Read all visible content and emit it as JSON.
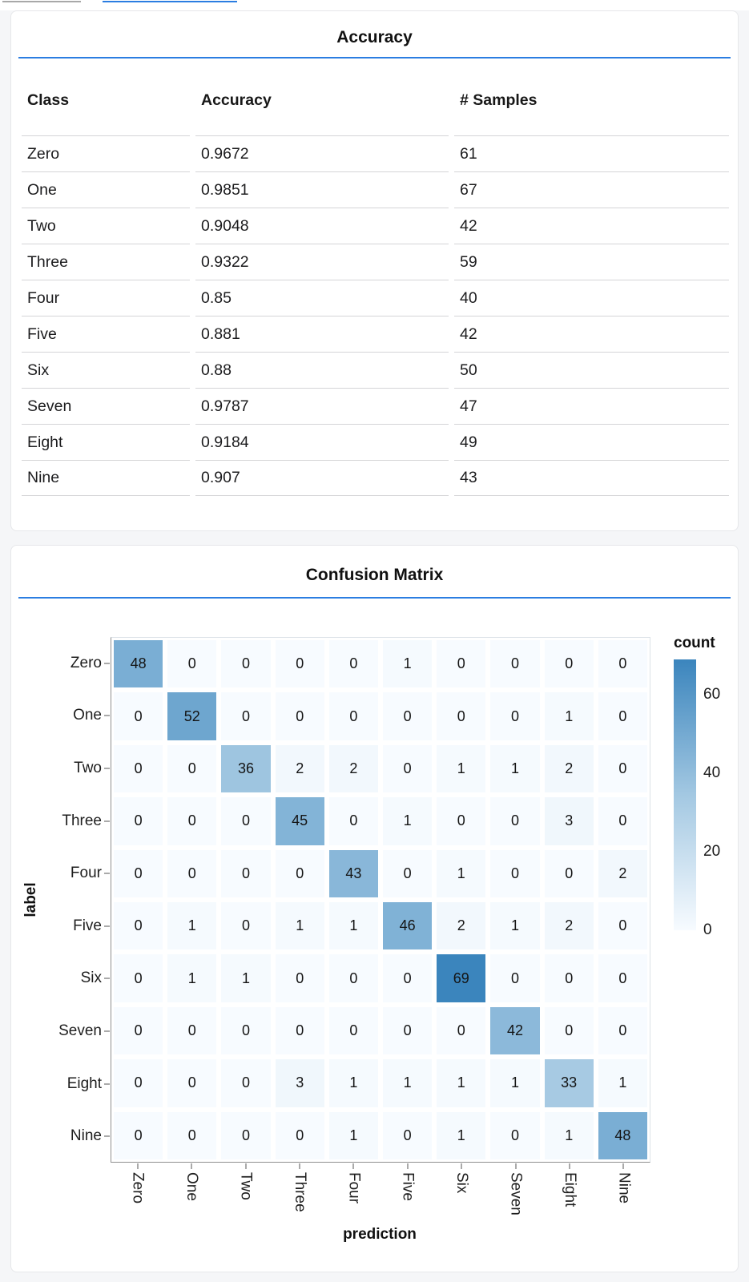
{
  "theme": {
    "page_bg": "#f5f6f8",
    "card_bg": "#ffffff",
    "card_border": "#e6e7ea",
    "accent_blue": "#2b7de1",
    "top_bar_gray": "#a8a8a8",
    "table_border": "#d5d5d7",
    "text_color": "#1c1c1e",
    "axis_line": "#8f8f8f",
    "tick_color": "#555555",
    "heat_min": "#f7fbff",
    "heat_mid": "#a3c8e2",
    "heat_max": "#3b85bd"
  },
  "accuracy_card": {
    "title": "Accuracy",
    "table": {
      "columns": [
        "Class",
        "Accuracy",
        "# Samples"
      ],
      "rows": [
        [
          "Zero",
          "0.9672",
          "61"
        ],
        [
          "One",
          "0.9851",
          "67"
        ],
        [
          "Two",
          "0.9048",
          "42"
        ],
        [
          "Three",
          "0.9322",
          "59"
        ],
        [
          "Four",
          "0.85",
          "40"
        ],
        [
          "Five",
          "0.881",
          "42"
        ],
        [
          "Six",
          "0.88",
          "50"
        ],
        [
          "Seven",
          "0.9787",
          "47"
        ],
        [
          "Eight",
          "0.9184",
          "49"
        ],
        [
          "Nine",
          "0.907",
          "43"
        ]
      ]
    }
  },
  "confusion_card": {
    "title": "Confusion Matrix"
  },
  "chart_data": {
    "type": "heatmap",
    "title": "Confusion Matrix",
    "xlabel": "prediction",
    "ylabel": "label",
    "x_categories": [
      "Zero",
      "One",
      "Two",
      "Three",
      "Four",
      "Five",
      "Six",
      "Seven",
      "Eight",
      "Nine"
    ],
    "y_categories": [
      "Zero",
      "One",
      "Two",
      "Three",
      "Four",
      "Five",
      "Six",
      "Seven",
      "Eight",
      "Nine"
    ],
    "matrix": [
      [
        48,
        0,
        0,
        0,
        0,
        1,
        0,
        0,
        0,
        0
      ],
      [
        0,
        52,
        0,
        0,
        0,
        0,
        0,
        0,
        1,
        0
      ],
      [
        0,
        0,
        36,
        2,
        2,
        0,
        1,
        1,
        2,
        0
      ],
      [
        0,
        0,
        0,
        45,
        0,
        1,
        0,
        0,
        3,
        0
      ],
      [
        0,
        0,
        0,
        0,
        43,
        0,
        1,
        0,
        0,
        2
      ],
      [
        0,
        1,
        0,
        1,
        1,
        46,
        2,
        1,
        2,
        0
      ],
      [
        0,
        1,
        1,
        0,
        0,
        0,
        69,
        0,
        0,
        0
      ],
      [
        0,
        0,
        0,
        0,
        0,
        0,
        0,
        42,
        0,
        0
      ],
      [
        0,
        0,
        0,
        3,
        1,
        1,
        1,
        1,
        33,
        1
      ],
      [
        0,
        0,
        0,
        0,
        1,
        0,
        1,
        0,
        1,
        48
      ]
    ],
    "color_domain": [
      0,
      69
    ],
    "legend": {
      "title": "count",
      "ticks": [
        60,
        40,
        20,
        0
      ],
      "position": "right"
    },
    "grid": false,
    "color_scheme": "blues"
  }
}
